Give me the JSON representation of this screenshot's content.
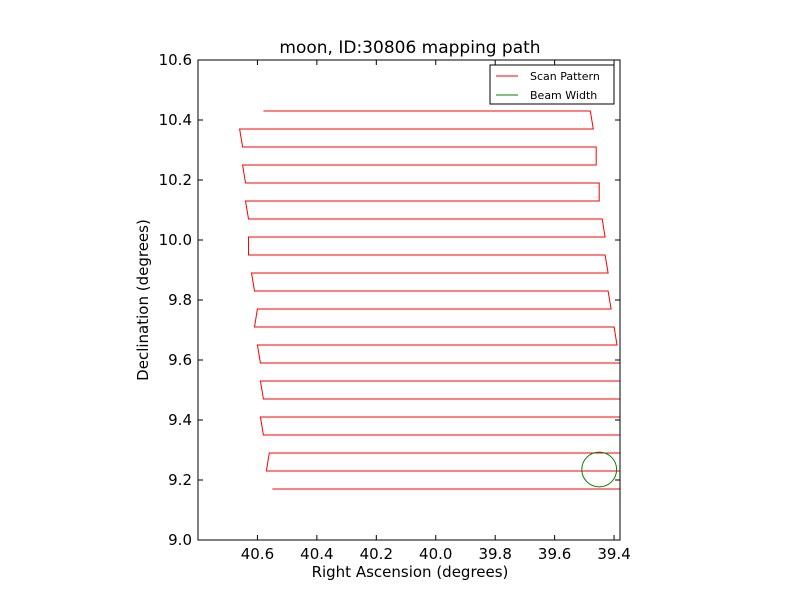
{
  "chart_data": {
    "type": "line",
    "title": "moon, ID:30806 mapping path",
    "xlabel": "Right Ascension (degrees)",
    "ylabel": "Declination (degrees)",
    "xlim": [
      40.8,
      39.38
    ],
    "ylim": [
      9.0,
      10.6
    ],
    "x_inverted": true,
    "xticks": [
      40.6,
      40.4,
      40.2,
      40.0,
      39.8,
      39.6,
      39.4
    ],
    "xtick_labels": [
      "40.6",
      "40.4",
      "40.2",
      "40.0",
      "39.8",
      "39.6",
      "39.4"
    ],
    "yticks": [
      9.0,
      9.2,
      9.4,
      9.6,
      9.8,
      10.0,
      10.2,
      10.4,
      10.6
    ],
    "ytick_labels": [
      "9.0",
      "9.2",
      "9.4",
      "9.6",
      "9.8",
      "10.0",
      "10.2",
      "10.4",
      "10.6"
    ],
    "grid": false,
    "legend_position": "top-right",
    "series": [
      {
        "name": "Scan Pattern",
        "color": "#ff0000",
        "style": "boustrophedon raster",
        "rows": [
          {
            "dec": 9.17,
            "ra_west": 40.55,
            "ra_east": 39.38
          },
          {
            "dec": 9.23,
            "ra_west": 40.57,
            "ra_east": 39.38
          },
          {
            "dec": 9.29,
            "ra_west": 40.56,
            "ra_east": 39.38
          },
          {
            "dec": 9.35,
            "ra_west": 40.58,
            "ra_east": 39.38
          },
          {
            "dec": 9.41,
            "ra_west": 40.59,
            "ra_east": 39.38
          },
          {
            "dec": 9.47,
            "ra_west": 40.58,
            "ra_east": 39.38
          },
          {
            "dec": 9.53,
            "ra_west": 40.59,
            "ra_east": 39.38
          },
          {
            "dec": 9.59,
            "ra_west": 40.59,
            "ra_east": 39.38
          },
          {
            "dec": 9.65,
            "ra_west": 40.6,
            "ra_east": 39.39
          },
          {
            "dec": 9.71,
            "ra_west": 40.61,
            "ra_east": 39.4
          },
          {
            "dec": 9.77,
            "ra_west": 40.6,
            "ra_east": 39.41
          },
          {
            "dec": 9.83,
            "ra_west": 40.61,
            "ra_east": 39.42
          },
          {
            "dec": 9.89,
            "ra_west": 40.62,
            "ra_east": 39.42
          },
          {
            "dec": 9.95,
            "ra_west": 40.63,
            "ra_east": 39.43
          },
          {
            "dec": 10.01,
            "ra_west": 40.63,
            "ra_east": 39.43
          },
          {
            "dec": 10.07,
            "ra_west": 40.63,
            "ra_east": 39.44
          },
          {
            "dec": 10.13,
            "ra_west": 40.64,
            "ra_east": 39.45
          },
          {
            "dec": 10.19,
            "ra_west": 40.64,
            "ra_east": 39.45
          },
          {
            "dec": 10.25,
            "ra_west": 40.65,
            "ra_east": 39.46
          },
          {
            "dec": 10.31,
            "ra_west": 40.65,
            "ra_east": 39.46
          },
          {
            "dec": 10.37,
            "ra_west": 40.66,
            "ra_east": 39.47
          },
          {
            "dec": 10.43,
            "ra_west": 40.58,
            "ra_east": 39.48
          }
        ]
      },
      {
        "name": "Beam Width",
        "color": "#008000",
        "shape": "circle",
        "center": {
          "ra": 39.45,
          "dec": 9.235
        },
        "radius_deg": 0.058
      }
    ]
  }
}
